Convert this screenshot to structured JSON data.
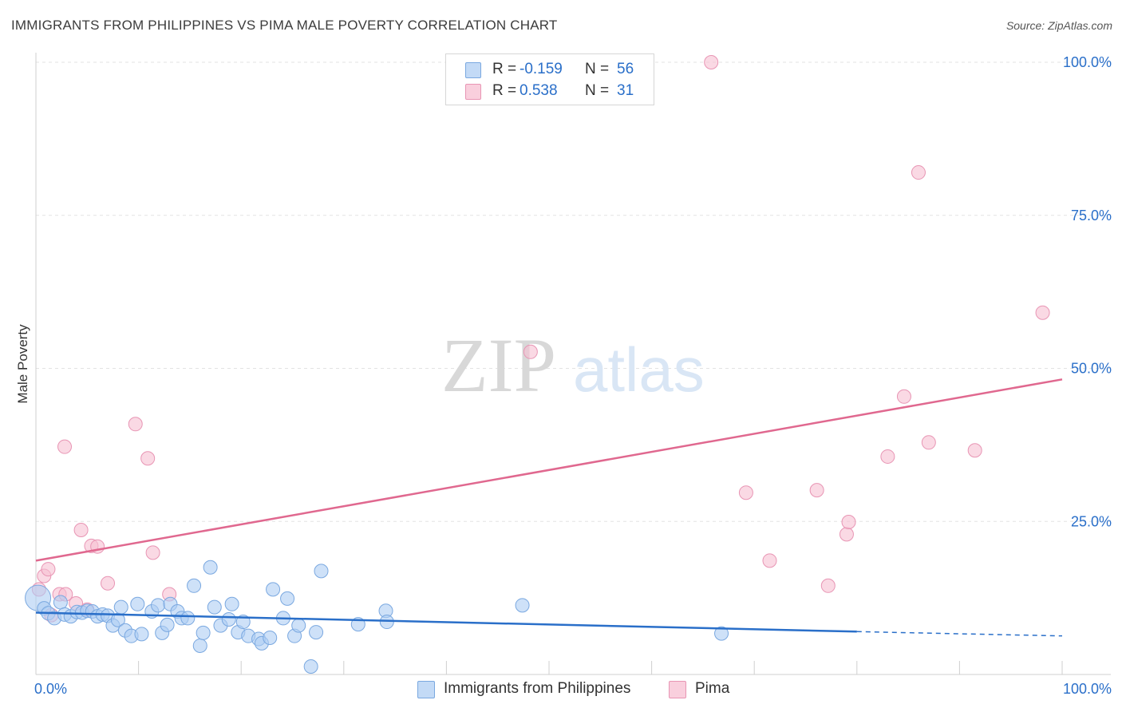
{
  "title": "IMMIGRANTS FROM PHILIPPINES VS PIMA MALE POVERTY CORRELATION CHART",
  "source": "Source: ZipAtlas.com",
  "watermark": {
    "zip": "ZIP",
    "atlas": "atlas"
  },
  "legend": {
    "rows": [
      {
        "r_label": "R =",
        "r_value": "-0.159",
        "n_label": "N =",
        "n_value": "56"
      },
      {
        "r_label": "R =",
        "r_value": "0.538",
        "n_label": "N =",
        "n_value": "31"
      }
    ]
  },
  "bottom_legend": {
    "items": [
      {
        "label": "Immigrants from Philippines"
      },
      {
        "label": "Pima"
      }
    ]
  },
  "colors": {
    "blue_fill": "#aecdf3",
    "blue_stroke": "#7aa8e0",
    "blue_line": "#2a6fc9",
    "pink_fill": "#f6bfd2",
    "pink_stroke": "#e895b4",
    "pink_line": "#e0688f",
    "tick_label": "#2a6fc9",
    "grid": "#e3e3e3"
  },
  "chart_data": {
    "type": "scatter",
    "title": "IMMIGRANTS FROM PHILIPPINES VS PIMA MALE POVERTY CORRELATION CHART",
    "xlabel": "",
    "ylabel": "Male Poverty",
    "xlim": [
      0,
      100
    ],
    "ylim": [
      0,
      100
    ],
    "x_tick_labels": [
      "0.0%",
      "100.0%"
    ],
    "y_ticks": [
      25,
      50,
      75,
      100
    ],
    "y_tick_labels": [
      "25.0%",
      "50.0%",
      "75.0%",
      "100.0%"
    ],
    "grid": true,
    "legend_position": "top-center",
    "series": [
      {
        "name": "Immigrants from Philippines",
        "r": -0.159,
        "n": 56,
        "trend": {
          "x0": 0,
          "y0": 10.1,
          "x1": 80,
          "y1": 7.0,
          "dashed_to_x": 100,
          "dashed_to_y": 6.3
        },
        "points": [
          [
            0.2,
            12.5
          ],
          [
            0.8,
            10.8
          ],
          [
            1.2,
            10.0
          ],
          [
            1.8,
            9.2
          ],
          [
            2.4,
            11.8
          ],
          [
            2.8,
            9.8
          ],
          [
            3.4,
            9.5
          ],
          [
            4.0,
            10.2
          ],
          [
            4.5,
            10.1
          ],
          [
            5.0,
            10.4
          ],
          [
            5.5,
            10.3
          ],
          [
            6.0,
            9.5
          ],
          [
            6.5,
            9.8
          ],
          [
            7.0,
            9.6
          ],
          [
            7.5,
            8.0
          ],
          [
            8.0,
            8.9
          ],
          [
            8.3,
            11.0
          ],
          [
            8.7,
            7.2
          ],
          [
            9.3,
            6.3
          ],
          [
            9.9,
            11.5
          ],
          [
            10.3,
            6.6
          ],
          [
            11.3,
            10.3
          ],
          [
            11.9,
            11.3
          ],
          [
            12.3,
            6.8
          ],
          [
            12.8,
            8.1
          ],
          [
            13.1,
            11.5
          ],
          [
            13.8,
            10.3
          ],
          [
            14.2,
            9.2
          ],
          [
            14.8,
            9.2
          ],
          [
            15.4,
            14.5
          ],
          [
            16.0,
            4.7
          ],
          [
            16.3,
            6.8
          ],
          [
            17.0,
            17.5
          ],
          [
            17.4,
            11.0
          ],
          [
            18.0,
            8.0
          ],
          [
            18.8,
            9.0
          ],
          [
            19.1,
            11.5
          ],
          [
            19.7,
            6.9
          ],
          [
            20.2,
            8.6
          ],
          [
            20.7,
            6.3
          ],
          [
            21.7,
            5.8
          ],
          [
            22.0,
            5.1
          ],
          [
            22.8,
            6.0
          ],
          [
            23.1,
            13.9
          ],
          [
            24.1,
            9.2
          ],
          [
            24.5,
            12.4
          ],
          [
            25.2,
            6.3
          ],
          [
            25.6,
            8.0
          ],
          [
            26.8,
            1.3
          ],
          [
            27.3,
            6.9
          ],
          [
            27.8,
            16.9
          ],
          [
            31.4,
            8.2
          ],
          [
            34.1,
            10.4
          ],
          [
            34.2,
            8.6
          ],
          [
            47.4,
            11.3
          ],
          [
            66.8,
            6.7
          ]
        ]
      },
      {
        "name": "Pima",
        "r": 0.538,
        "n": 31,
        "trend": {
          "x0": 0,
          "y0": 18.6,
          "x1": 100,
          "y1": 48.2
        },
        "points": [
          [
            0.3,
            13.9
          ],
          [
            0.8,
            16.1
          ],
          [
            1.2,
            17.2
          ],
          [
            1.5,
            9.7
          ],
          [
            2.3,
            13.1
          ],
          [
            2.8,
            37.2
          ],
          [
            2.9,
            13.1
          ],
          [
            3.9,
            11.6
          ],
          [
            4.4,
            23.6
          ],
          [
            5.0,
            10.6
          ],
          [
            5.4,
            21.0
          ],
          [
            6.0,
            20.9
          ],
          [
            7.0,
            14.9
          ],
          [
            9.7,
            40.9
          ],
          [
            10.9,
            35.3
          ],
          [
            11.4,
            19.9
          ],
          [
            13.0,
            13.1
          ],
          [
            48.2,
            52.7
          ],
          [
            65.8,
            100.0
          ],
          [
            69.2,
            29.7
          ],
          [
            71.5,
            18.6
          ],
          [
            76.1,
            30.1
          ],
          [
            77.2,
            14.5
          ],
          [
            79.0,
            22.9
          ],
          [
            79.2,
            24.9
          ],
          [
            83.0,
            35.6
          ],
          [
            84.6,
            45.4
          ],
          [
            86.0,
            82.0
          ],
          [
            87.0,
            37.9
          ],
          [
            91.5,
            36.6
          ],
          [
            98.1,
            59.1
          ]
        ]
      }
    ]
  }
}
